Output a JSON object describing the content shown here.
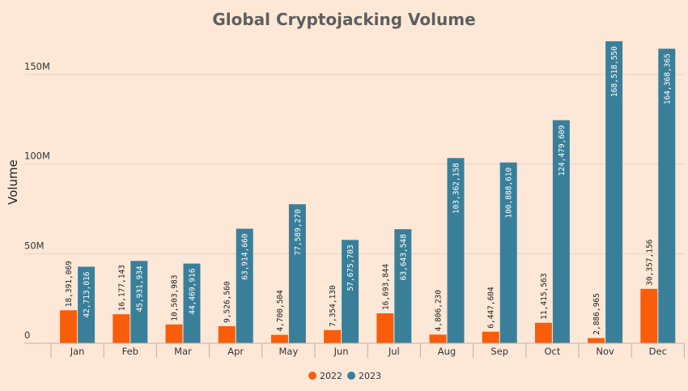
{
  "chart_data": {
    "type": "bar",
    "title": "Global Cryptojacking Volume",
    "xlabel": "",
    "ylabel": "Volume",
    "ylim": [
      0,
      175000000
    ],
    "yticks": [
      0,
      50000000,
      100000000,
      150000000
    ],
    "ytick_labels": [
      "0",
      "50M",
      "100M",
      "150M"
    ],
    "grid": true,
    "legend_position": "bottom",
    "categories": [
      "Jan",
      "Feb",
      "Mar",
      "Apr",
      "May",
      "Jun",
      "Jul",
      "Aug",
      "Sep",
      "Oct",
      "Nov",
      "Dec"
    ],
    "series": [
      {
        "name": "2022",
        "color": "#f95d0a",
        "values": [
          18391069,
          16177143,
          10503983,
          9526560,
          4700504,
          7354130,
          16693844,
          4806230,
          6447604,
          11415563,
          2886965,
          30357156
        ],
        "labels": [
          "18,391,069",
          "16,177,143",
          "10,503,983",
          "9,526,560",
          "4,700,504",
          "7,354,130",
          "16,693,844",
          "4,806,230",
          "6,447,604",
          "11,415,563",
          "2,886,965",
          "30,357,156"
        ]
      },
      {
        "name": "2023",
        "color": "#3a7f9a",
        "values": [
          42713016,
          45931934,
          44469916,
          63914660,
          77589270,
          57675703,
          63643548,
          103362158,
          100888610,
          124479609,
          168518550,
          164368365
        ],
        "labels": [
          "42,713,016",
          "45,931,934",
          "44,469,916",
          "63,914,660",
          "77,589,270",
          "57,675,703",
          "63,643,548",
          "103,362,158",
          "100,888,610",
          "124,479,609",
          "168,518,550",
          "164,368,365"
        ]
      }
    ]
  }
}
